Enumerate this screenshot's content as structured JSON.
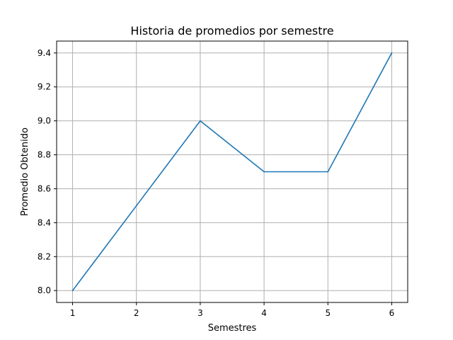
{
  "chart_data": {
    "type": "line",
    "title": "Historia de promedios por semestre",
    "xlabel": "Semestres",
    "ylabel": "Promedio Obtenido",
    "x": [
      1,
      2,
      3,
      4,
      5,
      6
    ],
    "series": [
      {
        "values": [
          8.0,
          8.5,
          9.0,
          8.7,
          8.7,
          9.4
        ],
        "color": "#1f77b4"
      }
    ],
    "xticks": [
      "1",
      "2",
      "3",
      "4",
      "5",
      "6"
    ],
    "yticks": [
      "8.0",
      "8.2",
      "8.4",
      "8.6",
      "8.8",
      "9.0",
      "9.2",
      "9.4"
    ],
    "xlim": [
      0.75,
      6.25
    ],
    "ylim": [
      7.93,
      9.47
    ],
    "grid": true,
    "legend": "none"
  }
}
